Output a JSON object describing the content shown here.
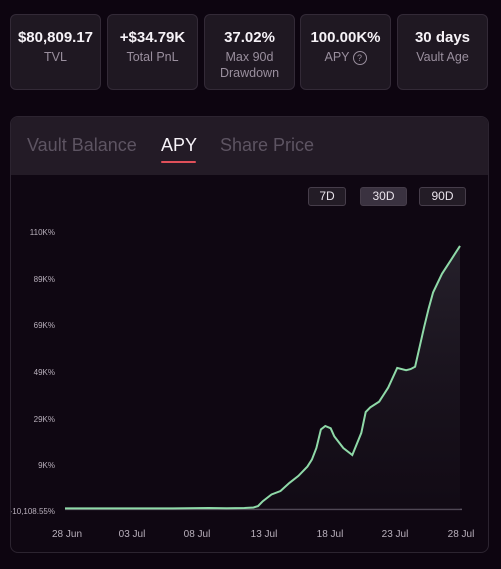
{
  "stats": [
    {
      "value": "$80,809.17",
      "label": "TVL"
    },
    {
      "value": "+$34.79K",
      "label": "Total PnL"
    },
    {
      "value": "37.02%",
      "label": "Max 90d Drawdown"
    },
    {
      "value": "100.00K%",
      "label": "APY",
      "help_icon": "question-circle-icon"
    },
    {
      "value": "30 days",
      "label": "Vault Age"
    }
  ],
  "tabs": [
    "Vault Balance",
    "APY",
    "Share Price"
  ],
  "active_tab": "APY",
  "ranges": [
    "7D",
    "30D",
    "90D"
  ],
  "selected_range": "30D",
  "colors": {
    "accent": "#e0505a",
    "line": "#8fd9a8",
    "background": "#0d0510"
  },
  "chart_data": {
    "type": "area",
    "x_ticks": [
      "28 Jun",
      "03 Jul",
      "08 Jul",
      "13 Jul",
      "18 Jul",
      "23 Jul",
      "28 Jul"
    ],
    "y_ticks": [
      "110K%",
      "89K%",
      "69K%",
      "49K%",
      "29K%",
      "9K%",
      "-10,108.55%"
    ],
    "ylim": [
      -10108.55,
      110000
    ],
    "series": [
      {
        "x": [
          0,
          4,
          8,
          12,
          16,
          18,
          20,
          21,
          21.5,
          22,
          23,
          24,
          25,
          26,
          27,
          27.5,
          28,
          28.5,
          29,
          29.6,
          30,
          31,
          32,
          33,
          33.5,
          34,
          35,
          36,
          37,
          38,
          38.5,
          39,
          40,
          40.5,
          41,
          42,
          43,
          44
        ],
        "y": [
          -9000,
          -9000,
          -9000,
          -9000,
          -8800,
          -8900,
          -8800,
          -8600,
          -8000,
          -6000,
          -3000,
          -1500,
          2000,
          5000,
          9000,
          12000,
          17000,
          25000,
          26500,
          25500,
          22000,
          17000,
          14000,
          23500,
          32500,
          34500,
          37000,
          43000,
          51500,
          50500,
          51000,
          52000,
          69000,
          77000,
          84000,
          92000,
          98000,
          104000
        ]
      }
    ],
    "grid": false
  }
}
